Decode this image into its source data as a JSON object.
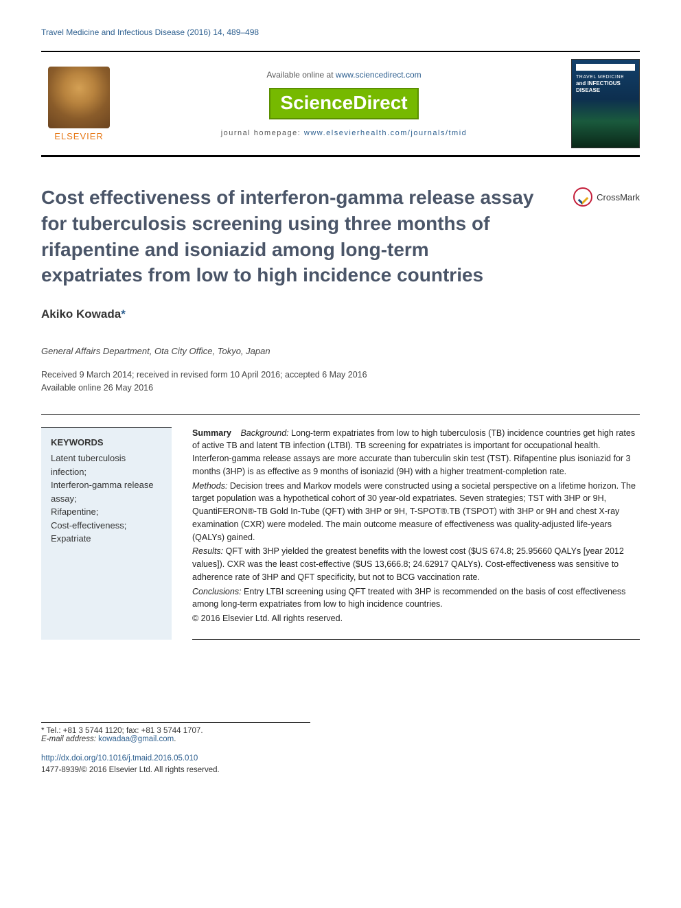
{
  "citation": "Travel Medicine and Infectious Disease (2016) 14, 489–498",
  "header": {
    "available_prefix": "Available online at ",
    "available_url": "www.sciencedirect.com",
    "sciencedirect": "ScienceDirect",
    "homepage_prefix": "journal homepage: ",
    "homepage_url": "www.elsevierhealth.com/journals/tmid",
    "elsevier_label": "ELSEVIER",
    "cover_line1": "TRAVEL MEDICINE",
    "cover_line2": "and INFECTIOUS",
    "cover_line3": "DISEASE"
  },
  "crossmark_label": "CrossMark",
  "title": "Cost effectiveness of interferon-gamma release assay for tuberculosis screening using three months of rifapentine and isoniazid among long-term expatriates from low to high incidence countries",
  "author_name": "Akiko Kowada",
  "author_corr": "*",
  "affiliation": "General Affairs Department, Ota City Office, Tokyo, Japan",
  "dates_line1": "Received 9 March 2014; received in revised form 10 April 2016; accepted 6 May 2016",
  "dates_line2": "Available online 26 May 2016",
  "keywords_heading": "KEYWORDS",
  "keywords_body": "Latent tuberculosis infection;\nInterferon-gamma release assay;\nRifapentine;\nCost-effectiveness;\nExpatriate",
  "abstract": {
    "summary_label": "Summary",
    "background_label": "Background:",
    "background": " Long-term expatriates from low to high tuberculosis (TB) incidence countries get high rates of active TB and latent TB infection (LTBI). TB screening for expatriates is important for occupational health. Interferon-gamma release assays are more accurate than tuberculin skin test (TST). Rifapentine plus isoniazid for 3 months (3HP) is as effective as 9 months of isoniazid (9H) with a higher treatment-completion rate.",
    "methods_label": "Methods:",
    "methods": " Decision trees and Markov models were constructed using a societal perspective on a lifetime horizon. The target population was a hypothetical cohort of 30 year-old expatriates. Seven strategies; TST with 3HP or 9H, QuantiFERON®-TB Gold In-Tube (QFT) with 3HP or 9H, T-SPOT®.TB (TSPOT) with 3HP or 9H and chest X-ray examination (CXR) were modeled. The main outcome measure of effectiveness was quality-adjusted life-years (QALYs) gained.",
    "results_label": "Results:",
    "results": " QFT with 3HP yielded the greatest benefits with the lowest cost ($US 674.8; 25.95660 QALYs [year 2012 values]). CXR was the least cost-effective ($US 13,666.8; 24.62917 QALYs). Cost-effectiveness was sensitive to adherence rate of 3HP and QFT specificity, but not to BCG vaccination rate.",
    "conclusions_label": "Conclusions:",
    "conclusions": " Entry LTBI screening using QFT treated with 3HP is recommended on the basis of cost effectiveness among long-term expatriates from low to high incidence countries.",
    "copyright": "© 2016 Elsevier Ltd. All rights reserved."
  },
  "footnote": {
    "tel_label": "* Tel.: ",
    "tel": "+81 3 5744 1120; fax: +81 3 5744 1707.",
    "email_label": "E-mail address: ",
    "email": "kowadaa@gmail.com",
    "email_suffix": "."
  },
  "footer": {
    "doi": "http://dx.doi.org/10.1016/j.tmaid.2016.05.010",
    "issn_line": "1477-8939/© 2016 Elsevier Ltd. All rights reserved."
  },
  "colors": {
    "link": "#2d5f8f",
    "title": "#4a5568",
    "elsevier_orange": "#e67817",
    "sd_green": "#76b900",
    "kw_bg": "#e8f0f6"
  }
}
